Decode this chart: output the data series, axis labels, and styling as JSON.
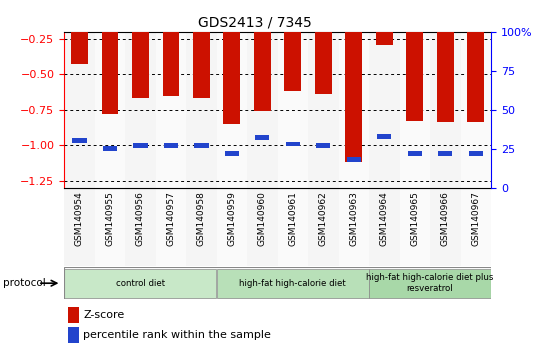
{
  "title": "GDS2413 / 7345",
  "samples": [
    "GSM140954",
    "GSM140955",
    "GSM140956",
    "GSM140957",
    "GSM140958",
    "GSM140959",
    "GSM140960",
    "GSM140961",
    "GSM140962",
    "GSM140963",
    "GSM140964",
    "GSM140965",
    "GSM140966",
    "GSM140967"
  ],
  "zscore": [
    -0.43,
    -0.78,
    -0.67,
    -0.65,
    -0.67,
    -0.85,
    -0.76,
    -0.62,
    -0.64,
    -1.12,
    -0.29,
    -0.83,
    -0.84,
    -0.84
  ],
  "percentile": [
    30,
    25,
    27,
    27,
    27,
    22,
    32,
    28,
    27,
    18,
    33,
    22,
    22,
    22
  ],
  "bar_color": "#cc1100",
  "pct_color": "#2244cc",
  "ylim_left": [
    -1.3,
    -0.2
  ],
  "ylim_right": [
    0,
    100
  ],
  "yticks_left": [
    -1.25,
    -1.0,
    -0.75,
    -0.5,
    -0.25
  ],
  "yticks_right": [
    0,
    25,
    50,
    75,
    100
  ],
  "groups": [
    {
      "label": "control diet",
      "start": 0,
      "end": 5,
      "color": "#c8e8c8"
    },
    {
      "label": "high-fat high-calorie diet",
      "start": 5,
      "end": 10,
      "color": "#b8e0b8"
    },
    {
      "label": "high-fat high-calorie diet plus\nresveratrol",
      "start": 10,
      "end": 14,
      "color": "#a8d8a8"
    }
  ],
  "protocol_label": "protocol",
  "legend_zscore": "Z-score",
  "legend_pct": "percentile rank within the sample",
  "bar_width": 0.55
}
